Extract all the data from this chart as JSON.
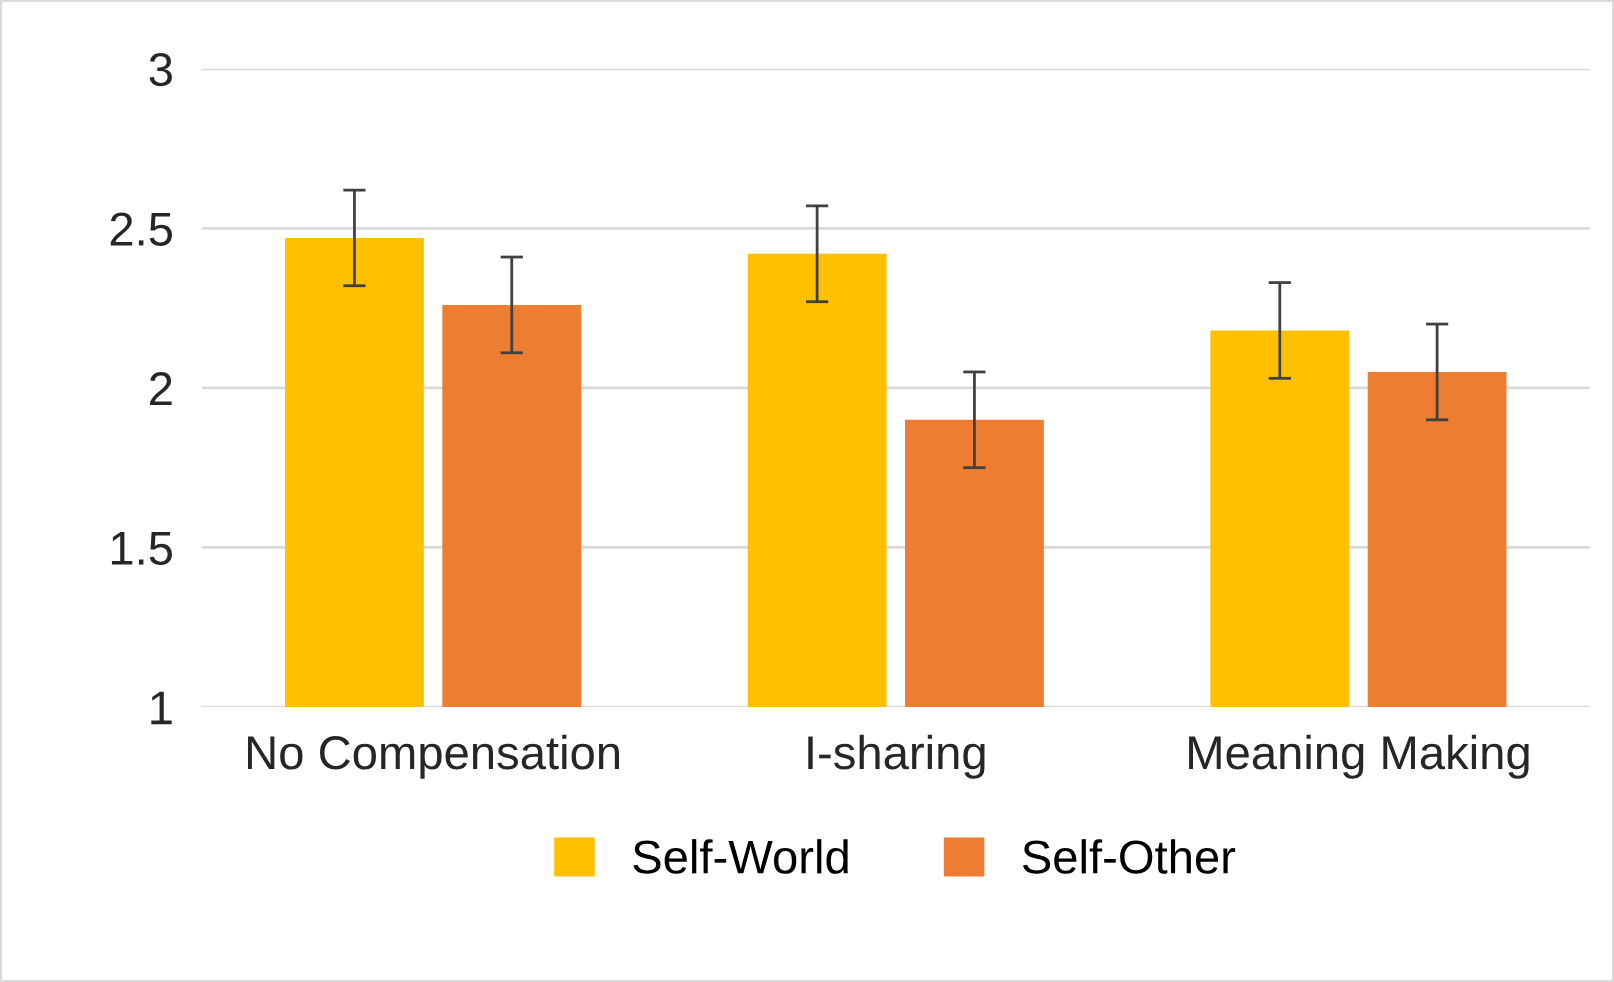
{
  "chart_data": {
    "type": "bar",
    "categories": [
      "No Compensation",
      "I-sharing",
      "Meaning Making"
    ],
    "series": [
      {
        "name": "Self-World",
        "color": "#ffc000",
        "values": [
          2.47,
          2.42,
          2.18
        ],
        "errors": [
          0.15,
          0.15,
          0.15
        ]
      },
      {
        "name": "Self-Other",
        "color": "#ed7d31",
        "values": [
          2.26,
          1.9,
          2.05
        ],
        "errors": [
          0.15,
          0.15,
          0.15
        ]
      }
    ],
    "ylim": [
      1,
      3
    ],
    "yticks": [
      1,
      1.5,
      2,
      2.5,
      3
    ],
    "grid": "y",
    "legend": "bottom"
  }
}
